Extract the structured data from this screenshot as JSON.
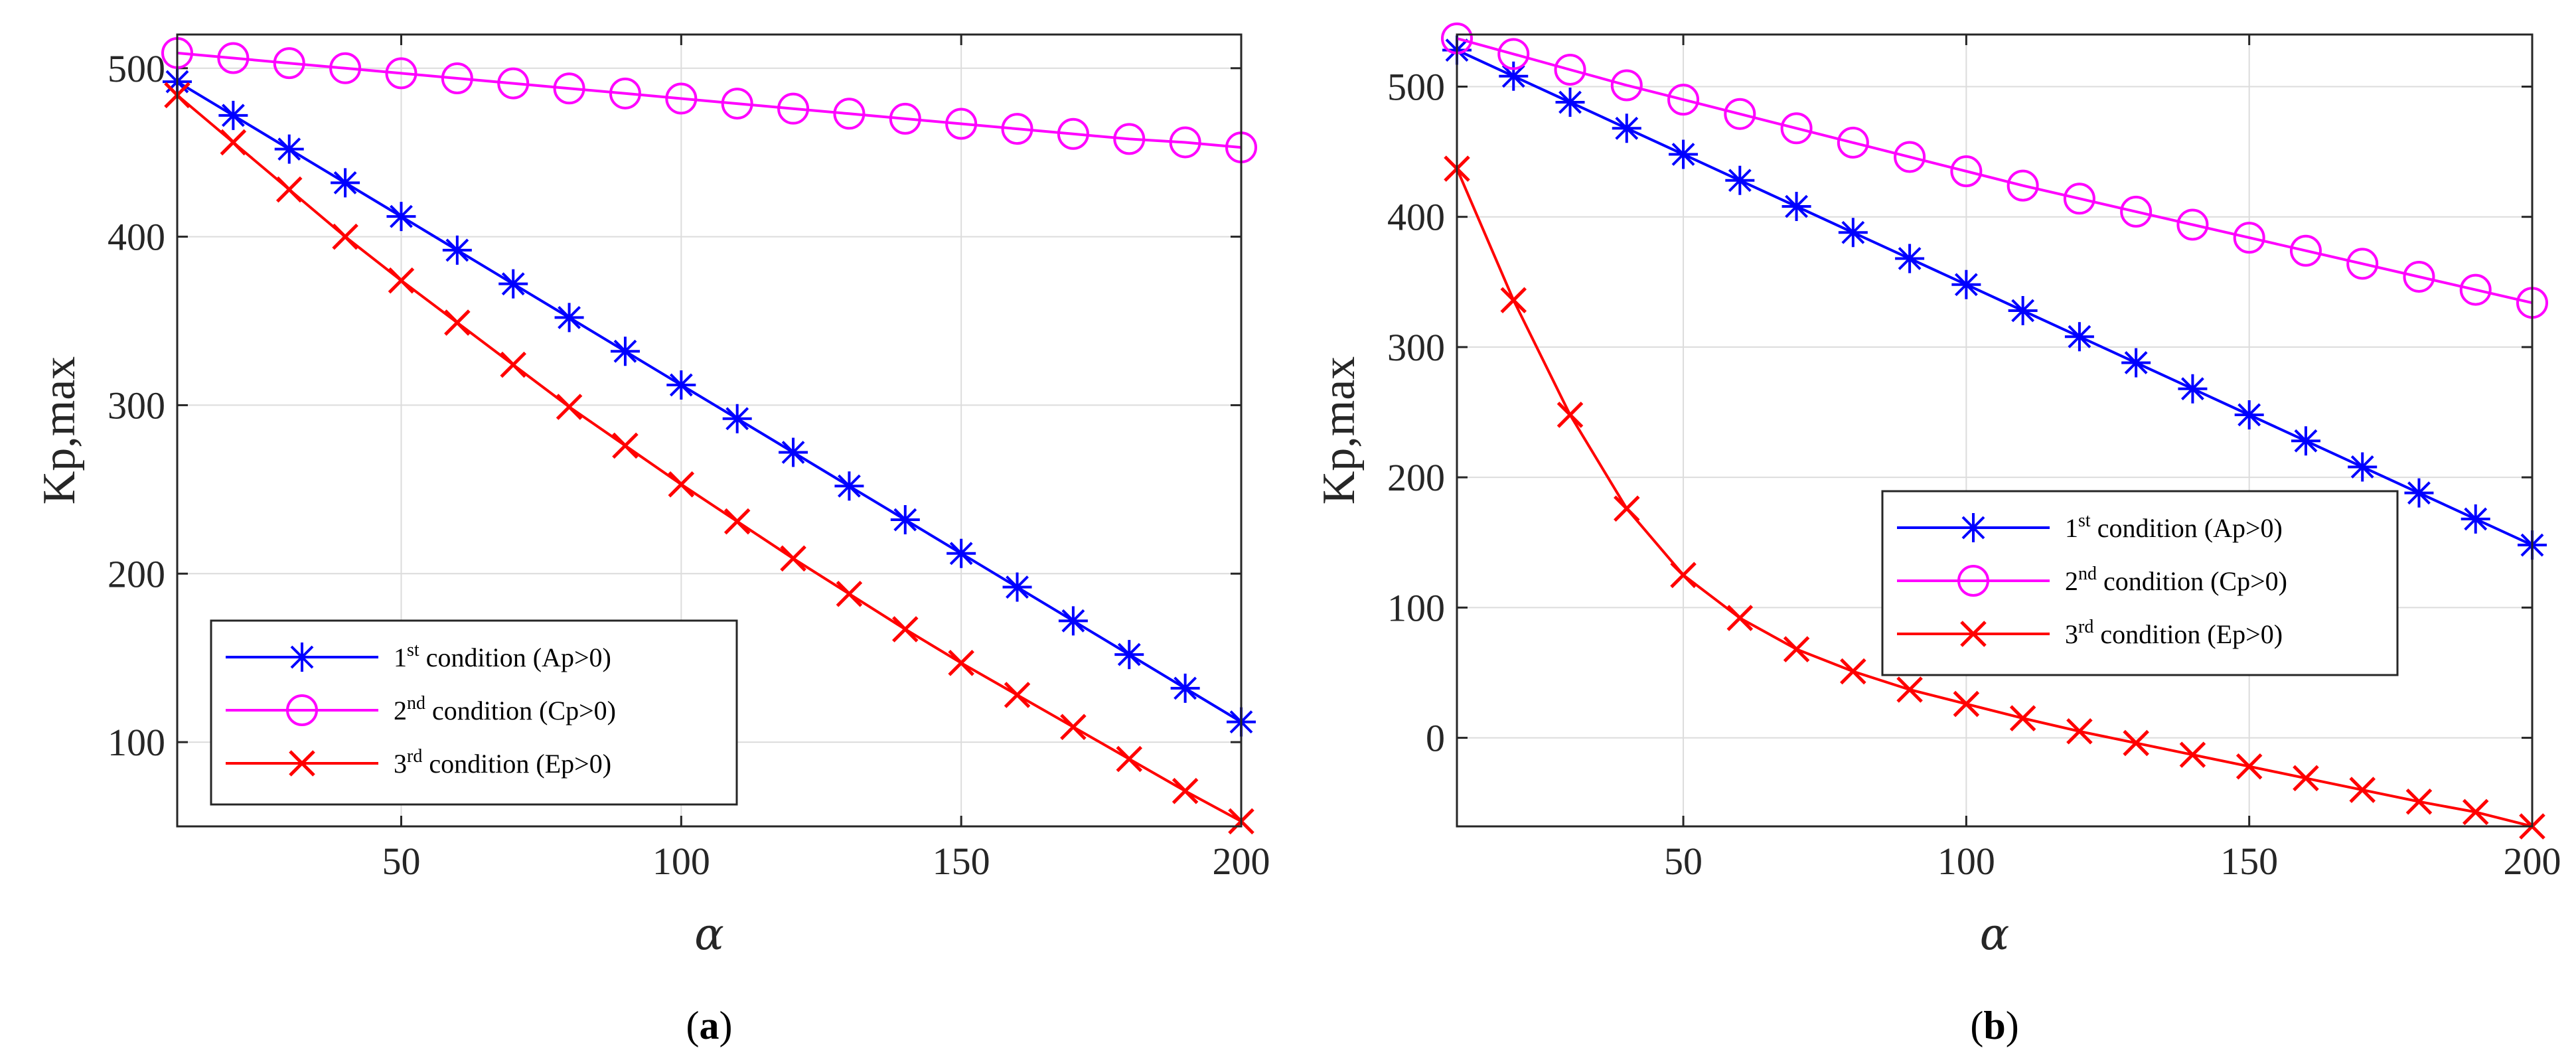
{
  "chart_data": [
    {
      "type": "line",
      "caption": "(a)",
      "caption_letter": "a",
      "xlabel": "α",
      "ylabel": "Kp,max",
      "xlim": [
        10,
        200
      ],
      "ylim": [
        50,
        520
      ],
      "xticks": [
        50,
        100,
        150,
        200
      ],
      "yticks": [
        100,
        200,
        300,
        400,
        500
      ],
      "grid": true,
      "x": [
        10,
        20,
        30,
        40,
        50,
        60,
        70,
        80,
        90,
        100,
        110,
        120,
        130,
        140,
        150,
        160,
        170,
        180,
        190,
        200
      ],
      "legend_position": "bottom-left",
      "series": [
        {
          "name": "1st condition (Ap>0)",
          "ordinal": "1",
          "suffix": "st",
          "rest": "condition (Ap>0)",
          "color": "#0000ff",
          "marker": "asterisk",
          "values": [
            492,
            472,
            452,
            432,
            412,
            392,
            372,
            352,
            332,
            312,
            292,
            272,
            252,
            232,
            212,
            192,
            172,
            152,
            132,
            112
          ]
        },
        {
          "name": "2nd condition (Cp>0)",
          "ordinal": "2",
          "suffix": "nd",
          "rest": "condition (Cp>0)",
          "color": "#ff00ff",
          "marker": "circle",
          "values": [
            509,
            506,
            503,
            500,
            497,
            494,
            491,
            488,
            485,
            482,
            479,
            476,
            473,
            470,
            467,
            464,
            461,
            458,
            456,
            453
          ]
        },
        {
          "name": "3rd condition (Ep>0)",
          "ordinal": "3",
          "suffix": "rd",
          "rest": "condition (Ep>0)",
          "color": "#ff0000",
          "marker": "x",
          "values": [
            484,
            456,
            428,
            400,
            374,
            349,
            324,
            299,
            276,
            253,
            231,
            209,
            188,
            167,
            147,
            128,
            109,
            90,
            71,
            53
          ]
        }
      ]
    },
    {
      "type": "line",
      "caption": "(b)",
      "caption_letter": "b",
      "xlabel": "α",
      "ylabel": "Kp,max",
      "xlim": [
        10,
        200
      ],
      "ylim": [
        -68,
        540
      ],
      "xticks": [
        50,
        100,
        150,
        200
      ],
      "yticks": [
        0,
        100,
        200,
        300,
        400,
        500
      ],
      "grid": true,
      "x": [
        10,
        20,
        30,
        40,
        50,
        60,
        70,
        80,
        90,
        100,
        110,
        120,
        130,
        140,
        150,
        160,
        170,
        180,
        190,
        200
      ],
      "legend_position": "center-right",
      "series": [
        {
          "name": "1st condition (Ap>0)",
          "ordinal": "1",
          "suffix": "st",
          "rest": "condition (Ap>0)",
          "color": "#0000ff",
          "marker": "asterisk",
          "values": [
            528,
            508,
            488,
            468,
            448,
            428,
            408,
            388,
            368,
            348,
            328,
            308,
            288,
            268,
            248,
            228,
            208,
            188,
            168,
            148
          ]
        },
        {
          "name": "2nd condition (Cp>0)",
          "ordinal": "2",
          "suffix": "nd",
          "rest": "condition (Cp>0)",
          "color": "#ff00ff",
          "marker": "circle",
          "values": [
            537,
            525,
            513,
            501,
            490,
            479,
            468,
            457,
            446,
            435,
            424,
            414,
            404,
            394,
            384,
            374,
            364,
            354,
            344,
            334
          ]
        },
        {
          "name": "3rd condition (Ep>0)",
          "ordinal": "3",
          "suffix": "rd",
          "rest": "condition (Ep>0)",
          "color": "#ff0000",
          "marker": "x",
          "values": [
            437,
            336,
            248,
            176,
            125,
            92,
            68,
            51,
            37,
            26,
            15,
            5,
            -4,
            -13,
            -22,
            -31,
            -40,
            -49,
            -57,
            -68
          ]
        }
      ]
    }
  ]
}
